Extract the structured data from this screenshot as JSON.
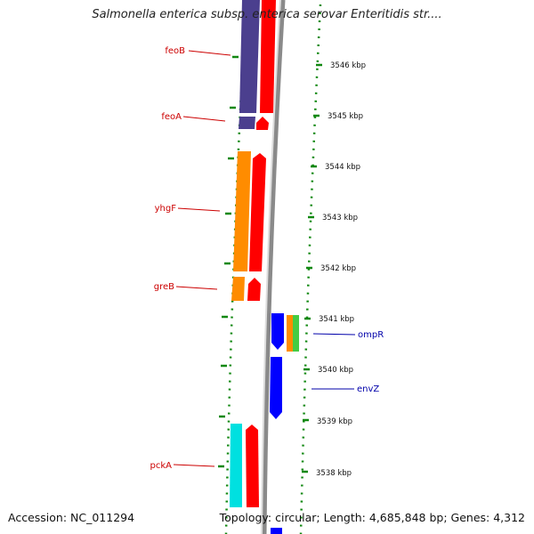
{
  "title": "Salmonella enterica subsp. enterica serovar Enteritidis str....",
  "footer": {
    "accession": "Accession: NC_011294",
    "topology": "Topology: circular; Length: 4,685,848 bp; Genes: 4,312"
  },
  "kbp_ticks": [
    "3546 kbp",
    "3545 kbp",
    "3544 kbp",
    "3543 kbp",
    "3542 kbp",
    "3541 kbp",
    "3540 kbp",
    "3539 kbp",
    "3538 kbp"
  ],
  "genes_left": [
    "feoB",
    "feoA",
    "yhgF",
    "greB",
    "pckA"
  ],
  "genes_right": [
    "ompR",
    "envZ"
  ],
  "colors": {
    "left_label": "#cc0000",
    "right_label": "#0000aa",
    "tick": "#118811",
    "purple": "#4b3f8e",
    "red": "#ff0000",
    "orange": "#ff8c00",
    "cyan": "#00e0e0",
    "blue": "#0000ff",
    "green": "#44cc44",
    "backbone": "#8a8a8a"
  }
}
